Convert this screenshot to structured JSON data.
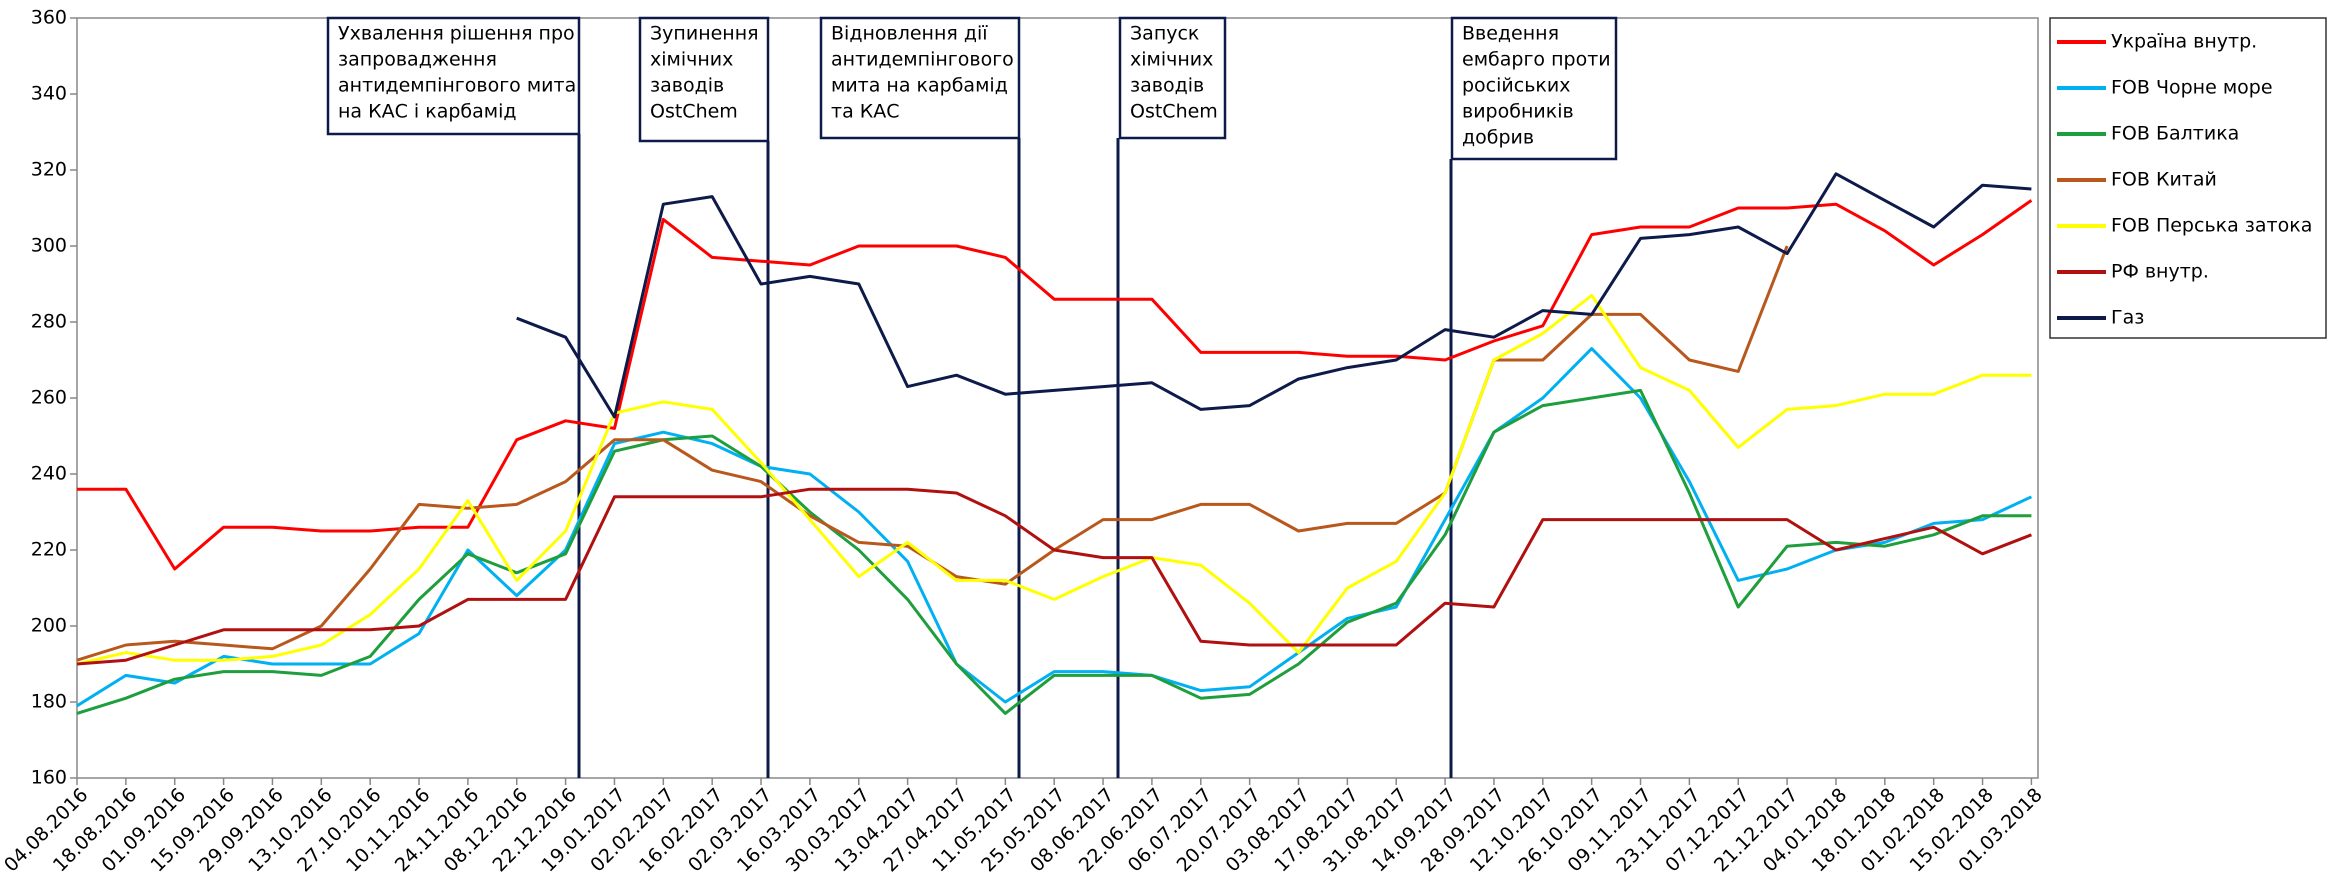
{
  "chart_data": {
    "type": "line",
    "categories": [
      "04.08.2016",
      "18.08.2016",
      "01.09.2016",
      "15.09.2016",
      "29.09.2016",
      "13.10.2016",
      "27.10.2016",
      "10.11.2016",
      "24.11.2016",
      "08.12.2016",
      "22.12.2016",
      "19.01.2017",
      "02.02.2017",
      "16.02.2017",
      "02.03.2017",
      "16.03.2017",
      "30.03.2017",
      "13.04.2017",
      "27.04.2017",
      "11.05.2017",
      "25.05.2017",
      "08.06.2017",
      "22.06.2017",
      "06.07.2017",
      "20.07.2017",
      "03.08.2017",
      "17.08.2017",
      "31.08.2017",
      "14.09.2017",
      "28.09.2017",
      "12.10.2017",
      "26.10.2017",
      "09.11.2017",
      "23.11.2017",
      "07.12.2017",
      "21.12.2017",
      "04.01.2018",
      "18.01.2018",
      "01.02.2018",
      "15.02.2018",
      "01.03.2018"
    ],
    "ylim": [
      160,
      360
    ],
    "yticks": [
      160,
      180,
      200,
      220,
      240,
      260,
      280,
      300,
      320,
      340,
      360
    ],
    "grid": false,
    "legend": "right",
    "series": [
      {
        "name": "Україна внутр.",
        "color": "#ff0000",
        "values": [
          236,
          236,
          215,
          226,
          226,
          225,
          225,
          226,
          226,
          249,
          254,
          252,
          307,
          297,
          296,
          295,
          300,
          300,
          300,
          297,
          286,
          286,
          286,
          272,
          272,
          272,
          271,
          271,
          270,
          275,
          279,
          303,
          305,
          305,
          310,
          310,
          311,
          304,
          295,
          303,
          312
        ]
      },
      {
        "name": "FOB Чорне море",
        "color": "#00b0f0",
        "values": [
          179,
          187,
          185,
          192,
          190,
          190,
          190,
          198,
          220,
          208,
          220,
          248,
          251,
          248,
          242,
          240,
          230,
          217,
          190,
          180,
          188,
          188,
          187,
          183,
          184,
          193,
          202,
          205,
          228,
          251,
          260,
          273,
          260,
          238,
          212,
          215,
          220,
          222,
          227,
          228,
          234
        ]
      },
      {
        "name": "FOB Балтика",
        "color": "#1e9e3c",
        "values": [
          177,
          181,
          186,
          188,
          188,
          187,
          192,
          207,
          219,
          214,
          219,
          246,
          249,
          250,
          242,
          230,
          220,
          207,
          190,
          177,
          187,
          187,
          187,
          181,
          182,
          190,
          201,
          206,
          224,
          251,
          258,
          260,
          262,
          235,
          205,
          221,
          222,
          221,
          224,
          229,
          229
        ]
      },
      {
        "name": "FOB Китай",
        "color": "#b8581c",
        "values": [
          191,
          195,
          196,
          195,
          194,
          200,
          215,
          232,
          231,
          232,
          238,
          249,
          249,
          241,
          238,
          229,
          222,
          221,
          213,
          211,
          220,
          228,
          228,
          232,
          232,
          225,
          227,
          227,
          235,
          270,
          270,
          282,
          282,
          270,
          267,
          300,
          null,
          null,
          null,
          null,
          null
        ]
      },
      {
        "name": "FOB Перська затока",
        "color": "#ffff00",
        "values": [
          190,
          193,
          191,
          191,
          192,
          195,
          203,
          215,
          233,
          212,
          225,
          256,
          259,
          257,
          243,
          228,
          213,
          222,
          212,
          212,
          207,
          213,
          218,
          216,
          206,
          193,
          210,
          217,
          235,
          270,
          277,
          287,
          268,
          262,
          247,
          257,
          258,
          261,
          261,
          266,
          266
        ]
      },
      {
        "name": "РФ внутр.",
        "color": "#b01010",
        "values": [
          190,
          191,
          195,
          199,
          199,
          199,
          199,
          200,
          207,
          207,
          207,
          234,
          234,
          234,
          234,
          236,
          236,
          236,
          235,
          229,
          220,
          218,
          218,
          196,
          195,
          195,
          195,
          195,
          206,
          205,
          228,
          228,
          228,
          228,
          228,
          228,
          220,
          223,
          226,
          219,
          224
        ]
      },
      {
        "name": "Газ",
        "color": "#0d1a4a",
        "values": [
          null,
          null,
          null,
          null,
          null,
          null,
          null,
          null,
          null,
          281,
          276,
          255,
          311,
          313,
          290,
          292,
          290,
          263,
          266,
          261,
          262,
          263,
          264,
          257,
          258,
          265,
          268,
          270,
          278,
          276,
          283,
          282,
          302,
          303,
          305,
          298,
          319,
          312,
          305,
          316,
          315
        ]
      }
    ],
    "annotations": [
      {
        "text": [
          "Ухвалення рішення про",
          "запровадження",
          "антидемпінгового мита",
          "на КАС і карбамід"
        ]
      },
      {
        "text": [
          "Зупинення",
          "хімічних",
          "заводів",
          "OstChem"
        ]
      },
      {
        "text": [
          "Відновлення дії",
          "антидемпінгового",
          "мита на карбамід",
          "та КАС"
        ]
      },
      {
        "text": [
          "Запуск",
          "хімічних",
          "заводів",
          "OstChem"
        ]
      },
      {
        "text": [
          "Введення",
          "ембарго проти",
          "російських",
          "виробників",
          "добрив"
        ]
      }
    ]
  }
}
